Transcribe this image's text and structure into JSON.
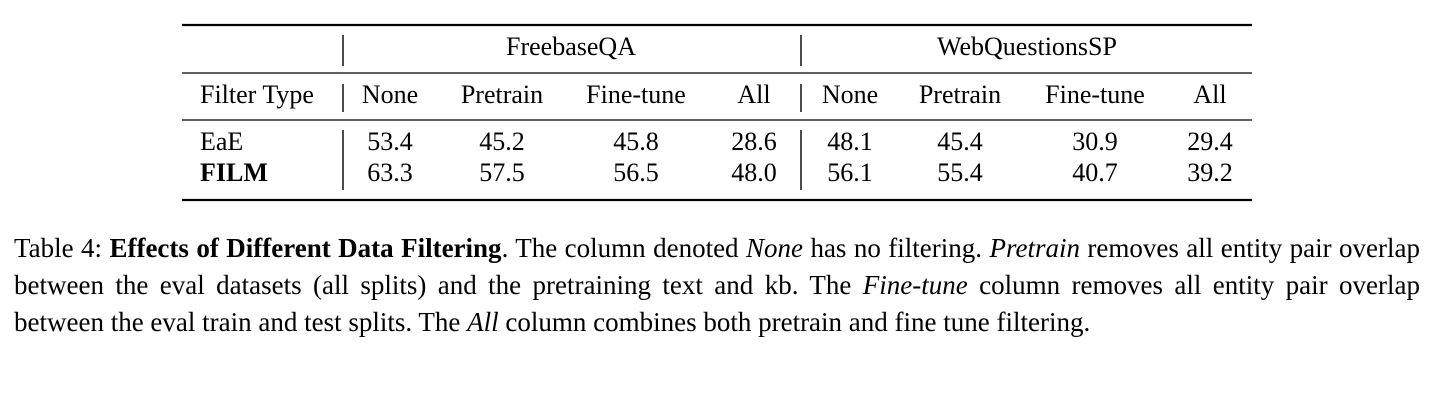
{
  "table": {
    "groups": [
      "FreebaseQA",
      "WebQuestionsSP"
    ],
    "header": [
      "Filter Type",
      "None",
      "Pretrain",
      "Fine-tune",
      "All",
      "None",
      "Pretrain",
      "Fine-tune",
      "All"
    ],
    "rows": [
      [
        "EaE",
        "53.4",
        "45.2",
        "45.8",
        "28.6",
        "48.1",
        "45.4",
        "30.9",
        "29.4"
      ],
      [
        "FILM",
        "63.3",
        "57.5",
        "56.5",
        "48.0",
        "56.1",
        "55.4",
        "40.7",
        "39.2"
      ]
    ]
  },
  "caption": [
    "Table 4:",
    "Effects of Different Data Filtering",
    ". The column denoted",
    "None",
    "has no filtering.",
    "Pretrain",
    "removes all entity pair overlap between the eval datasets (all splits) and the pretraining text and kb. The",
    "Fine-tune",
    "column removes all entity pair overlap between the eval train and test splits. The",
    "All",
    "column combines both pretrain and fine tune filtering."
  ]
}
